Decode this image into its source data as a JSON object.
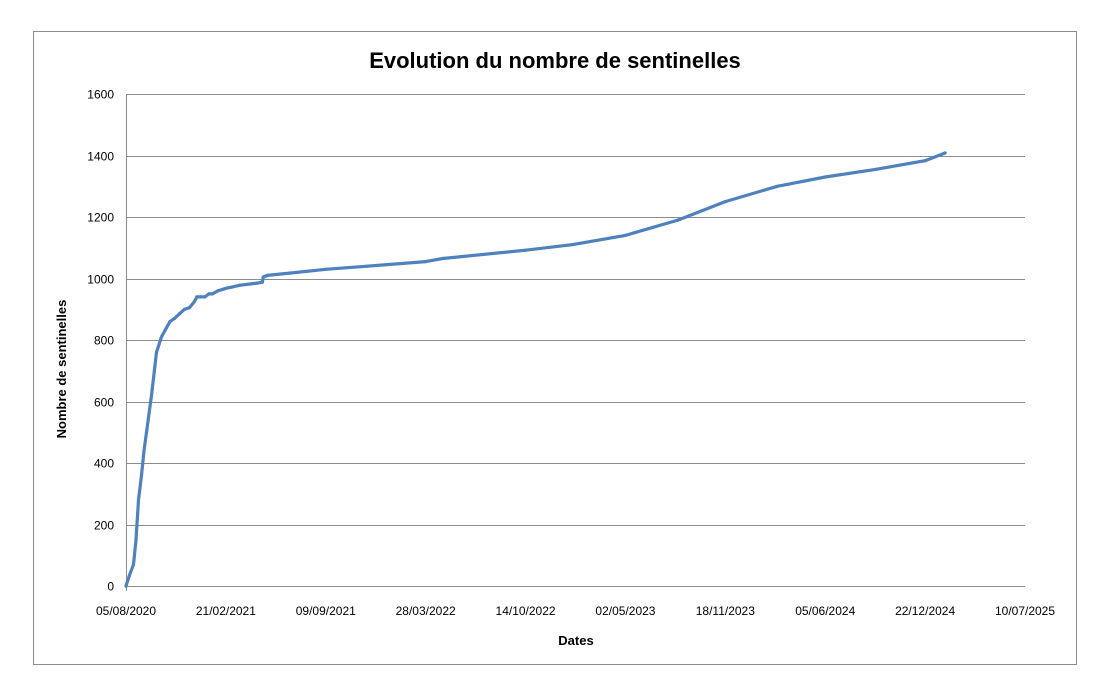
{
  "chart_data": {
    "type": "line",
    "title": "Evolution du nombre de sentinelles",
    "xlabel": "Dates",
    "ylabel": "Nombre de sentinelles",
    "ylim": [
      0,
      1600
    ],
    "yticks": [
      0,
      200,
      400,
      600,
      800,
      1000,
      1200,
      1400,
      1600
    ],
    "xlim": [
      "2020-08-05",
      "2025-07-10"
    ],
    "xtick_labels": [
      "05/08/2020",
      "21/02/2021",
      "09/09/2021",
      "28/03/2022",
      "14/10/2022",
      "02/05/2023",
      "18/11/2023",
      "05/06/2024",
      "22/12/2024",
      "10/07/2025"
    ],
    "grid": true,
    "legend": "none",
    "series_color": "#4F81BD",
    "series": [
      {
        "x": [
          "2020-08-05",
          "2020-08-12",
          "2020-08-20",
          "2020-08-25",
          "2020-08-30",
          "2020-09-05",
          "2020-09-10",
          "2020-09-15",
          "2020-09-25",
          "2020-10-05",
          "2020-10-15",
          "2020-10-25",
          "2020-11-01",
          "2020-11-10",
          "2020-11-20",
          "2020-11-30",
          "2020-12-10",
          "2020-12-20",
          "2020-12-25",
          "2021-01-01",
          "2021-01-10",
          "2021-01-18",
          "2021-01-25",
          "2021-02-05",
          "2021-02-15",
          "2021-02-21",
          "2021-03-05",
          "2021-03-20",
          "2021-04-10",
          "2021-04-25",
          "2021-05-05",
          "2021-05-07",
          "2021-05-15",
          "2021-07-01",
          "2021-09-09",
          "2021-12-01",
          "2022-03-28",
          "2022-05-01",
          "2022-10-14",
          "2023-01-15",
          "2023-05-02",
          "2023-08-15",
          "2023-11-18",
          "2024-03-01",
          "2024-06-05",
          "2024-09-15",
          "2024-12-22",
          "2025-01-31"
        ],
        "y": [
          0,
          35,
          70,
          150,
          280,
          360,
          440,
          500,
          620,
          760,
          810,
          840,
          860,
          870,
          885,
          900,
          905,
          925,
          940,
          940,
          940,
          950,
          950,
          960,
          965,
          968,
          972,
          978,
          982,
          985,
          988,
          1005,
          1010,
          1018,
          1030,
          1040,
          1055,
          1065,
          1092,
          1110,
          1140,
          1190,
          1250,
          1300,
          1330,
          1355,
          1383,
          1408
        ]
      }
    ]
  }
}
